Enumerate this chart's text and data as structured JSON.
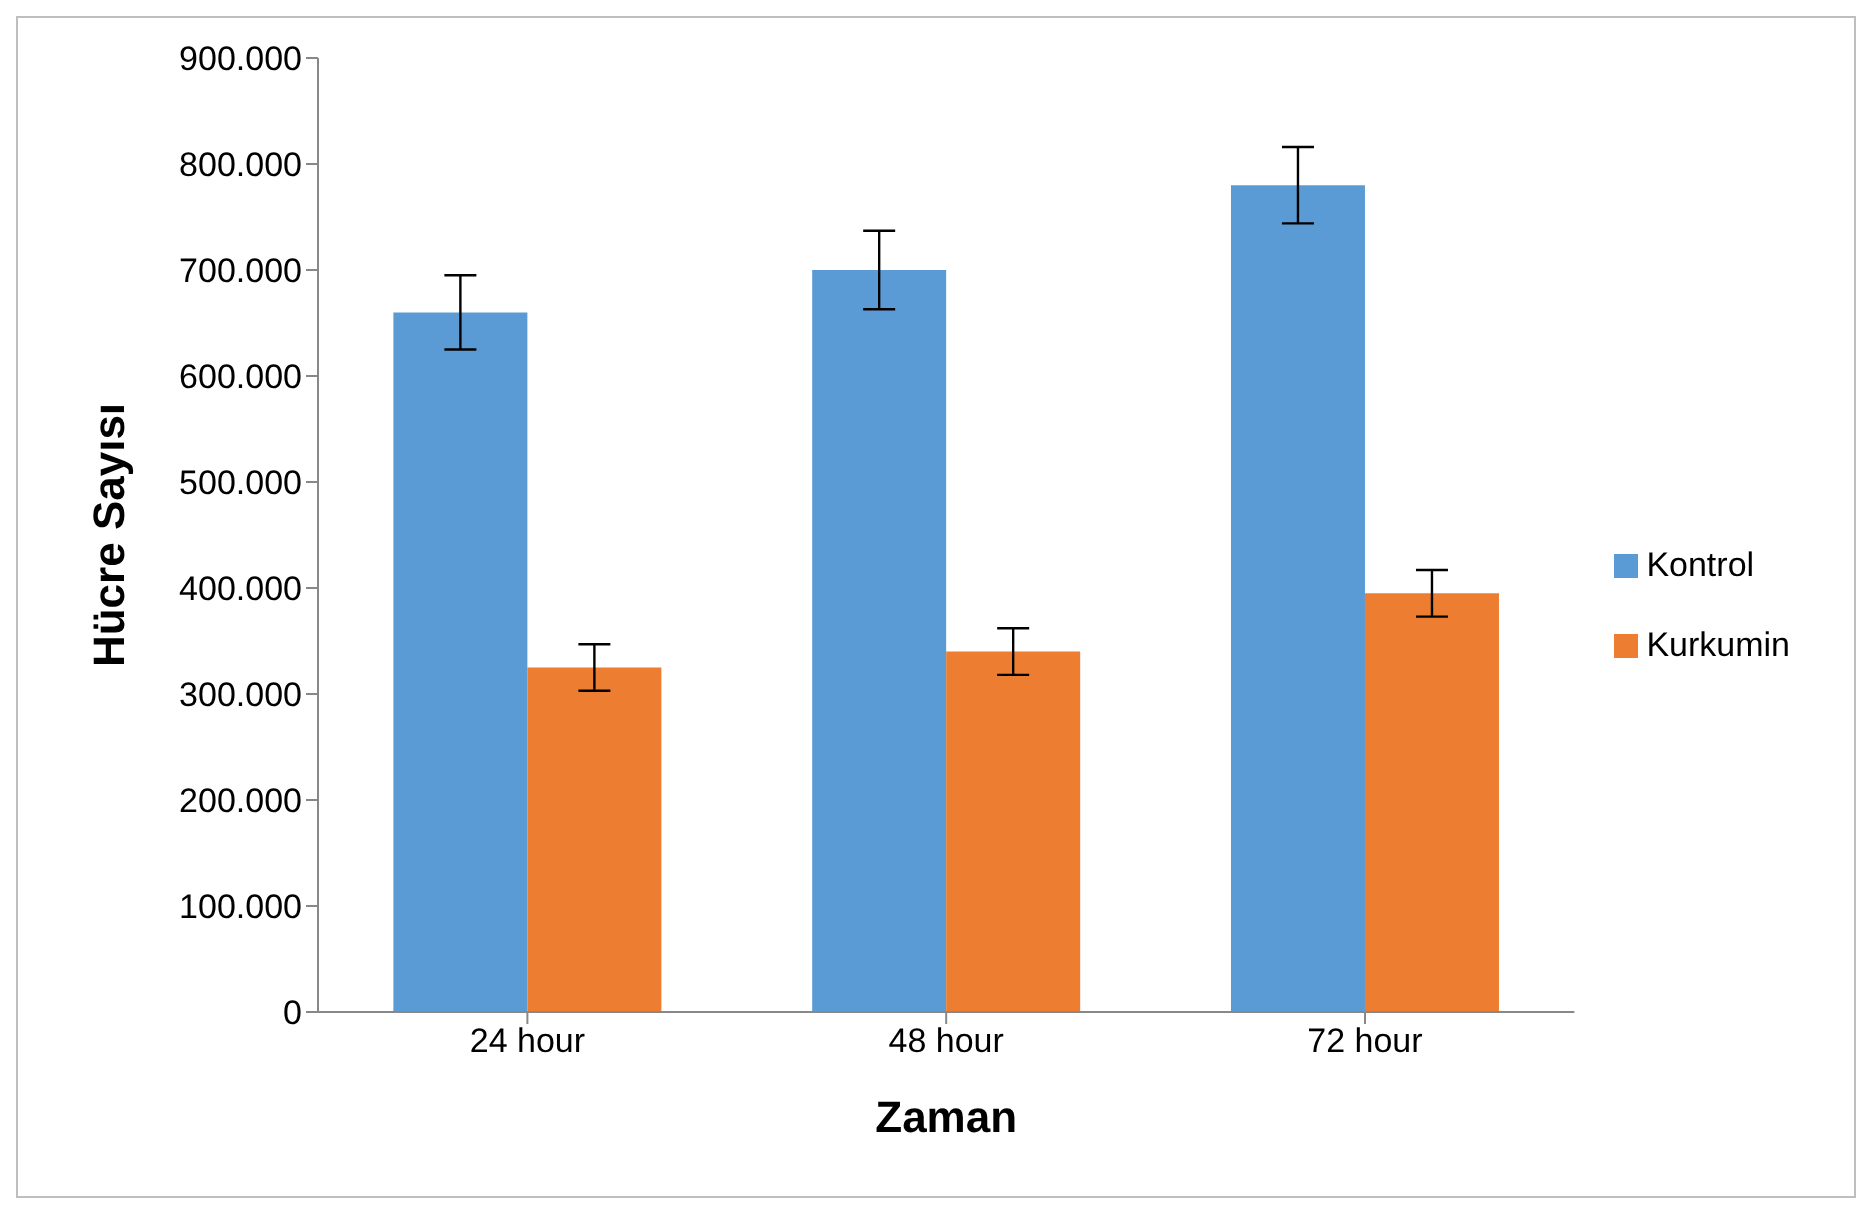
{
  "chart_data": {
    "type": "bar",
    "xlabel": "Zaman",
    "ylabel": "Hücre Sayısı",
    "categories": [
      "24 hour",
      "48 hour",
      "72 hour"
    ],
    "series": [
      {
        "name": "Kontrol",
        "color": "#5b9bd5",
        "values": [
          660000,
          700000,
          780000
        ],
        "errors": [
          35000,
          37000,
          36000
        ]
      },
      {
        "name": "Kurkumin",
        "color": "#ed7d31",
        "values": [
          325000,
          340000,
          395000
        ],
        "errors": [
          22000,
          22000,
          22000
        ]
      }
    ],
    "ylim": [
      0,
      900000
    ],
    "yticks": [
      {
        "value": 0,
        "label": "0"
      },
      {
        "value": 100000,
        "label": "100.000"
      },
      {
        "value": 200000,
        "label": "200.000"
      },
      {
        "value": 300000,
        "label": "300.000"
      },
      {
        "value": 400000,
        "label": "400.000"
      },
      {
        "value": 500000,
        "label": "500.000"
      },
      {
        "value": 600000,
        "label": "600.000"
      },
      {
        "value": 700000,
        "label": "700.000"
      },
      {
        "value": 800000,
        "label": "800.000"
      },
      {
        "value": 900000,
        "label": "900.000"
      }
    ],
    "grid": false,
    "legend": "right"
  }
}
